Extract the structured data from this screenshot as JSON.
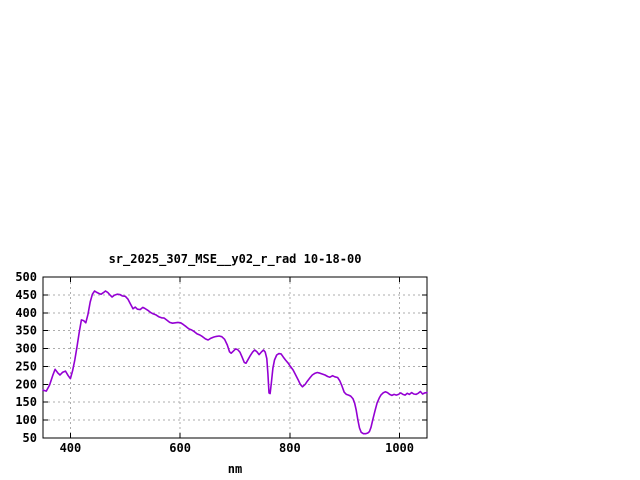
{
  "window": {
    "background": "#ffffff"
  },
  "chart_data": {
    "type": "line",
    "title": "sr_2025_307_MSE__y02_r_rad 10-18-00",
    "xlabel": "nm",
    "ylabel": "",
    "xlim": [
      350,
      1050
    ],
    "ylim": [
      50,
      500
    ],
    "x_ticks": [
      400,
      600,
      800,
      1000
    ],
    "y_ticks": [
      50,
      100,
      150,
      200,
      250,
      300,
      350,
      400,
      450,
      500
    ],
    "grid": true,
    "legend": "none",
    "colors": {
      "line": "#9400d3",
      "grid": "#adadad",
      "axis": "#000000",
      "text": "#000000",
      "background": "#ffffff"
    },
    "series": [
      {
        "points": [
          [
            350,
            184
          ],
          [
            356,
            181
          ],
          [
            362,
            198
          ],
          [
            368,
            226
          ],
          [
            372,
            242
          ],
          [
            377,
            232
          ],
          [
            381,
            226
          ],
          [
            386,
            234
          ],
          [
            391,
            237
          ],
          [
            396,
            224
          ],
          [
            400,
            216
          ],
          [
            404,
            238
          ],
          [
            408,
            268
          ],
          [
            412,
            305
          ],
          [
            416,
            345
          ],
          [
            420,
            380
          ],
          [
            424,
            378
          ],
          [
            428,
            372
          ],
          [
            432,
            396
          ],
          [
            436,
            430
          ],
          [
            440,
            452
          ],
          [
            444,
            461
          ],
          [
            448,
            457
          ],
          [
            452,
            454
          ],
          [
            456,
            452
          ],
          [
            460,
            456
          ],
          [
            464,
            461
          ],
          [
            468,
            457
          ],
          [
            472,
            450
          ],
          [
            476,
            444
          ],
          [
            480,
            449
          ],
          [
            485,
            452
          ],
          [
            490,
            451
          ],
          [
            495,
            447
          ],
          [
            500,
            446
          ],
          [
            505,
            438
          ],
          [
            509,
            426
          ],
          [
            514,
            411
          ],
          [
            518,
            416
          ],
          [
            522,
            410
          ],
          [
            527,
            409
          ],
          [
            532,
            415
          ],
          [
            536,
            412
          ],
          [
            541,
            407
          ],
          [
            546,
            401
          ],
          [
            551,
            397
          ],
          [
            556,
            394
          ],
          [
            561,
            389
          ],
          [
            566,
            386
          ],
          [
            571,
            385
          ],
          [
            576,
            379
          ],
          [
            581,
            373
          ],
          [
            586,
            371
          ],
          [
            591,
            372
          ],
          [
            596,
            373
          ],
          [
            601,
            372
          ],
          [
            606,
            367
          ],
          [
            611,
            361
          ],
          [
            616,
            355
          ],
          [
            621,
            352
          ],
          [
            626,
            347
          ],
          [
            631,
            341
          ],
          [
            636,
            338
          ],
          [
            641,
            333
          ],
          [
            646,
            327
          ],
          [
            651,
            324
          ],
          [
            656,
            329
          ],
          [
            661,
            332
          ],
          [
            666,
            334
          ],
          [
            671,
            335
          ],
          [
            676,
            333
          ],
          [
            681,
            326
          ],
          [
            686,
            310
          ],
          [
            690,
            291
          ],
          [
            693,
            287
          ],
          [
            697,
            293
          ],
          [
            701,
            299
          ],
          [
            705,
            297
          ],
          [
            709,
            290
          ],
          [
            713,
            276
          ],
          [
            717,
            261
          ],
          [
            720,
            259
          ],
          [
            724,
            270
          ],
          [
            728,
            281
          ],
          [
            732,
            290
          ],
          [
            736,
            296
          ],
          [
            740,
            291
          ],
          [
            744,
            283
          ],
          [
            748,
            290
          ],
          [
            752,
            296
          ],
          [
            755,
            290
          ],
          [
            758,
            272
          ],
          [
            760,
            230
          ],
          [
            762,
            176
          ],
          [
            764,
            174
          ],
          [
            766,
            200
          ],
          [
            769,
            245
          ],
          [
            772,
            268
          ],
          [
            776,
            282
          ],
          [
            780,
            286
          ],
          [
            784,
            285
          ],
          [
            788,
            276
          ],
          [
            792,
            268
          ],
          [
            797,
            259
          ],
          [
            801,
            250
          ],
          [
            806,
            240
          ],
          [
            810,
            228
          ],
          [
            815,
            213
          ],
          [
            819,
            200
          ],
          [
            823,
            193
          ],
          [
            828,
            200
          ],
          [
            832,
            209
          ],
          [
            837,
            219
          ],
          [
            841,
            226
          ],
          [
            846,
            231
          ],
          [
            850,
            233
          ],
          [
            855,
            231
          ],
          [
            859,
            229
          ],
          [
            864,
            226
          ],
          [
            869,
            222
          ],
          [
            873,
            220
          ],
          [
            878,
            224
          ],
          [
            882,
            221
          ],
          [
            887,
            219
          ],
          [
            891,
            210
          ],
          [
            895,
            195
          ],
          [
            899,
            178
          ],
          [
            903,
            172
          ],
          [
            907,
            170
          ],
          [
            911,
            167
          ],
          [
            915,
            160
          ],
          [
            918,
            148
          ],
          [
            921,
            128
          ],
          [
            924,
            100
          ],
          [
            927,
            78
          ],
          [
            930,
            66
          ],
          [
            934,
            62
          ],
          [
            938,
            62
          ],
          [
            942,
            64
          ],
          [
            945,
            68
          ],
          [
            948,
            80
          ],
          [
            951,
            100
          ],
          [
            955,
            125
          ],
          [
            959,
            148
          ],
          [
            963,
            162
          ],
          [
            966,
            170
          ],
          [
            970,
            176
          ],
          [
            974,
            179
          ],
          [
            978,
            177
          ],
          [
            982,
            172
          ],
          [
            986,
            169
          ],
          [
            990,
            172
          ],
          [
            994,
            170
          ],
          [
            998,
            172
          ],
          [
            1002,
            176
          ],
          [
            1006,
            172
          ],
          [
            1010,
            170
          ],
          [
            1014,
            175
          ],
          [
            1018,
            172
          ],
          [
            1022,
            177
          ],
          [
            1026,
            173
          ],
          [
            1030,
            172
          ],
          [
            1034,
            175
          ],
          [
            1038,
            180
          ],
          [
            1042,
            173
          ],
          [
            1046,
            176
          ],
          [
            1050,
            177
          ]
        ]
      }
    ]
  }
}
